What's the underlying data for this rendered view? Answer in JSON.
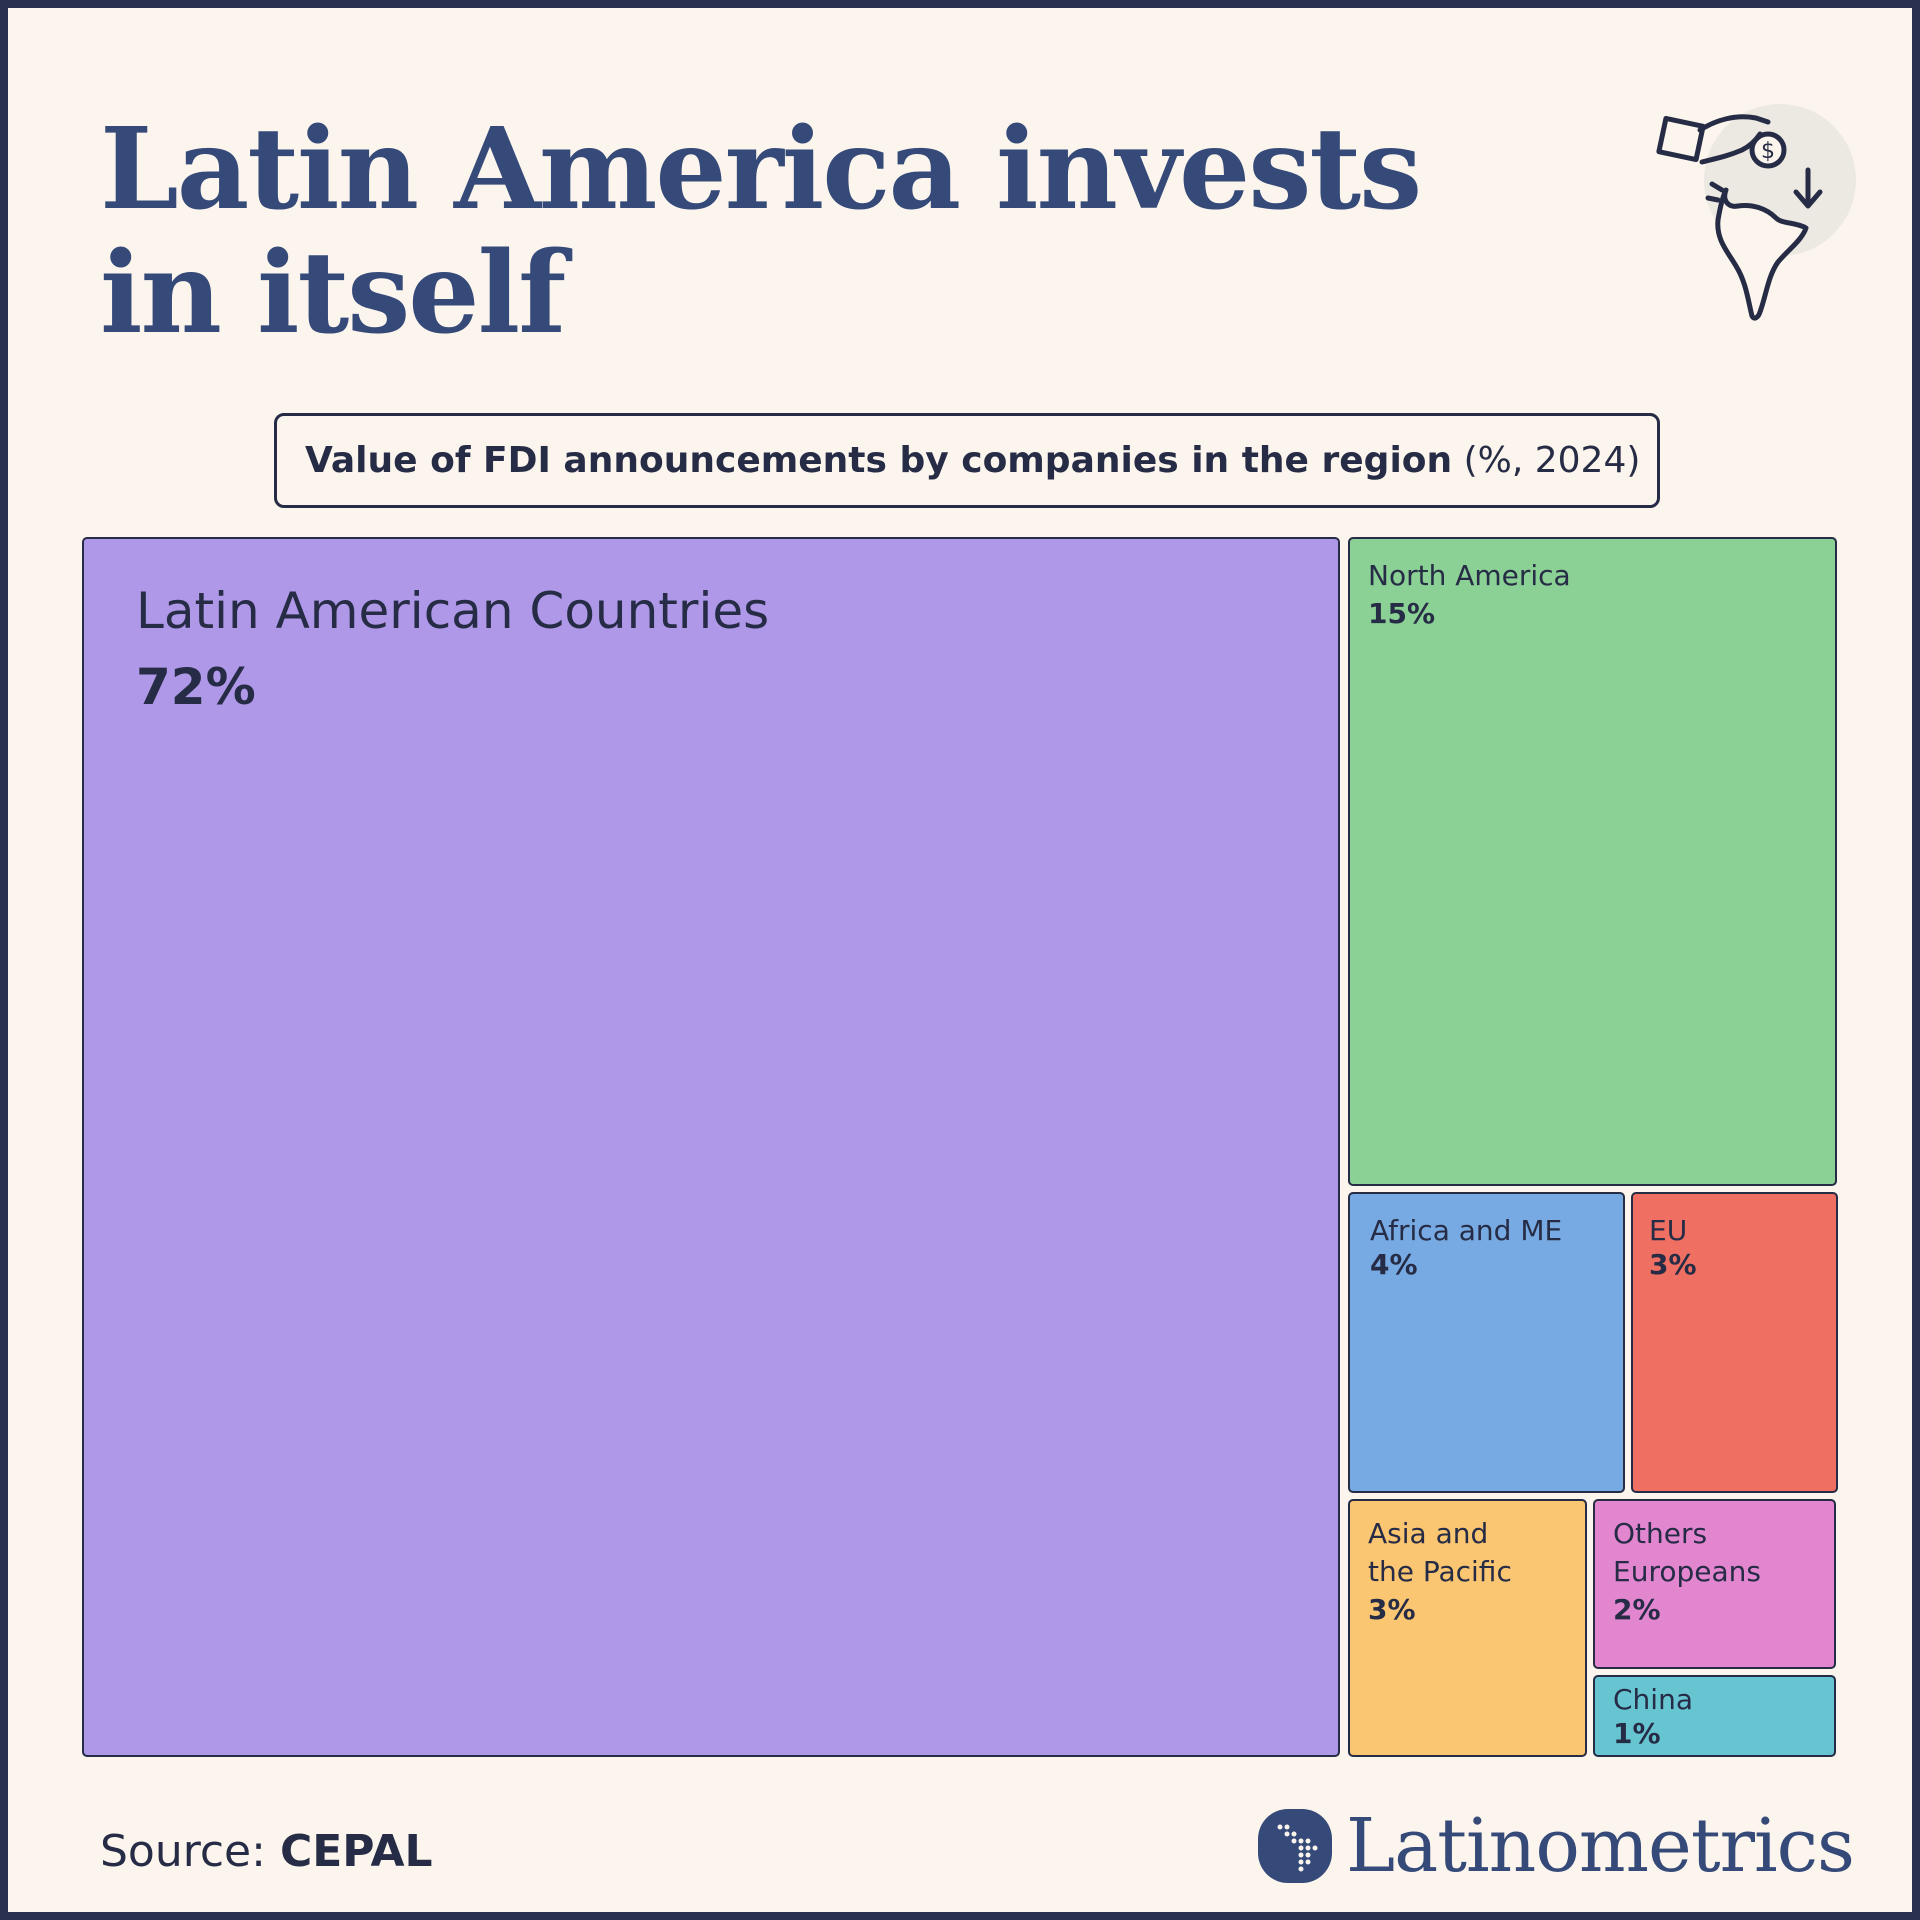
{
  "title_lines": [
    "Latin America invests",
    "in itself"
  ],
  "subtitle": {
    "bold_text": "Value of FDI announcements by companies in the region",
    "unit_text": " (%, 2024)"
  },
  "chart_data": {
    "type": "treemap",
    "title": "Value of FDI announcements by companies in the region (%, 2024)",
    "items": [
      {
        "label": "Latin American Countries",
        "value": 72,
        "value_label": "72%",
        "color": "#af98e7"
      },
      {
        "label": "North America",
        "value": 15,
        "value_label": "15%",
        "color": "#8bd094"
      },
      {
        "label": "Africa and ME",
        "value": 4,
        "value_label": "4%",
        "color": "#77aae2"
      },
      {
        "label": "EU",
        "value": 3,
        "value_label": "3%",
        "color": "#ef6f63"
      },
      {
        "label": "Asia and\nthe Pacific",
        "value": 3,
        "value_label": "3%",
        "color": "#fbc671"
      },
      {
        "label": "Others\nEuropeans",
        "value": 2,
        "value_label": "2%",
        "color": "#e386d0"
      },
      {
        "label": "China",
        "value": 1,
        "value_label": "1%",
        "color": "#67c5d1"
      }
    ]
  },
  "source": {
    "prefix": "Source: ",
    "name": "CEPAL"
  },
  "brand": {
    "name": "Latinometrics"
  },
  "icons": {
    "hero": "investment-hand-coin-americas-icon",
    "brand": "latin-america-dots-logo-icon"
  },
  "colors": {
    "title": "#354a78",
    "background": "#fcf5ee",
    "ink": "#262c45"
  }
}
